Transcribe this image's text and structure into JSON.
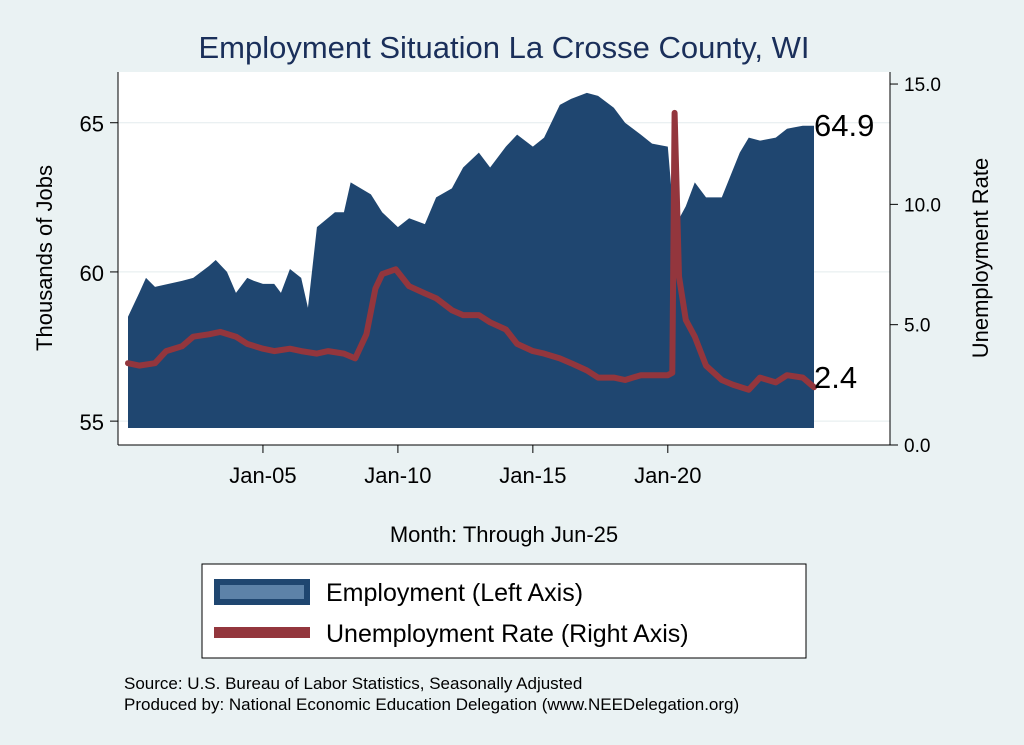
{
  "chart_data": {
    "type": "area",
    "title": "Employment Situation La Crosse  County, WI",
    "xlabel": "Month: Through Jun-25",
    "ylabel_left": "Thousands of Jobs",
    "ylabel_right": "Unemployment Rate",
    "x_ticks": [
      "Jan-05",
      "Jan-10",
      "Jan-15",
      "Jan-20"
    ],
    "y_left_ticks": [
      "55",
      "60",
      "65"
    ],
    "y_right_ticks": [
      "0.0",
      "5.0",
      "10.0",
      "15.0"
    ],
    "y_left_range": [
      54.2,
      66.7
    ],
    "y_right_range": [
      0,
      15.5
    ],
    "x_range": [
      "2000-01",
      "2025-06"
    ],
    "grid": true,
    "legend_position": "bottom",
    "end_labels": {
      "employment": "64.9",
      "unemployment": "2.4"
    },
    "colors": {
      "employment": "#1f4670",
      "unemployment": "#93363d",
      "background": "#eaf2f3",
      "plot_bg": "#ffffff",
      "title": "#1a2f5a"
    },
    "series": [
      {
        "name": "Employment (Left Axis)",
        "axis": "left",
        "points": [
          [
            "2000-01",
            58.5
          ],
          [
            "2000-06",
            59.3
          ],
          [
            "2000-09",
            59.8
          ],
          [
            "2001-01",
            59.5
          ],
          [
            "2002-01",
            59.7
          ],
          [
            "2002-06",
            59.8
          ],
          [
            "2003-01",
            60.2
          ],
          [
            "2003-04",
            60.4
          ],
          [
            "2003-09",
            60.0
          ],
          [
            "2004-01",
            59.3
          ],
          [
            "2004-06",
            59.8
          ],
          [
            "2004-09",
            59.7
          ],
          [
            "2005-01",
            59.6
          ],
          [
            "2005-06",
            59.6
          ],
          [
            "2005-09",
            59.3
          ],
          [
            "2006-01",
            60.1
          ],
          [
            "2006-06",
            59.8
          ],
          [
            "2006-09",
            58.8
          ],
          [
            "2007-01",
            61.5
          ],
          [
            "2007-09",
            62.0
          ],
          [
            "2008-01",
            62.0
          ],
          [
            "2008-04",
            63.0
          ],
          [
            "2009-01",
            62.6
          ],
          [
            "2009-06",
            62.0
          ],
          [
            "2010-01",
            61.5
          ],
          [
            "2010-06",
            61.8
          ],
          [
            "2011-01",
            61.6
          ],
          [
            "2011-06",
            62.5
          ],
          [
            "2012-01",
            62.8
          ],
          [
            "2012-06",
            63.5
          ],
          [
            "2013-01",
            64.0
          ],
          [
            "2013-06",
            63.5
          ],
          [
            "2014-01",
            64.2
          ],
          [
            "2014-06",
            64.6
          ],
          [
            "2015-01",
            64.2
          ],
          [
            "2015-06",
            64.5
          ],
          [
            "2016-01",
            65.6
          ],
          [
            "2016-06",
            65.8
          ],
          [
            "2017-01",
            66.0
          ],
          [
            "2017-06",
            65.9
          ],
          [
            "2018-01",
            65.5
          ],
          [
            "2018-06",
            65.0
          ],
          [
            "2019-01",
            64.6
          ],
          [
            "2019-06",
            64.3
          ],
          [
            "2020-01",
            64.2
          ],
          [
            "2020-04",
            61.5
          ],
          [
            "2020-09",
            62.2
          ],
          [
            "2021-01",
            63.0
          ],
          [
            "2021-06",
            62.5
          ],
          [
            "2022-01",
            62.5
          ],
          [
            "2022-09",
            64.0
          ],
          [
            "2023-01",
            64.5
          ],
          [
            "2023-06",
            64.4
          ],
          [
            "2024-01",
            64.5
          ],
          [
            "2024-06",
            64.8
          ],
          [
            "2025-01",
            64.9
          ],
          [
            "2025-06",
            64.9
          ]
        ]
      },
      {
        "name": "Unemployment Rate (Right Axis)",
        "axis": "right",
        "points": [
          [
            "2000-01",
            3.4
          ],
          [
            "2000-06",
            3.3
          ],
          [
            "2001-01",
            3.4
          ],
          [
            "2001-06",
            3.9
          ],
          [
            "2002-01",
            4.1
          ],
          [
            "2002-06",
            4.5
          ],
          [
            "2003-01",
            4.6
          ],
          [
            "2003-06",
            4.7
          ],
          [
            "2004-01",
            4.5
          ],
          [
            "2004-06",
            4.2
          ],
          [
            "2005-01",
            4.0
          ],
          [
            "2005-06",
            3.9
          ],
          [
            "2006-01",
            4.0
          ],
          [
            "2006-06",
            3.9
          ],
          [
            "2007-01",
            3.8
          ],
          [
            "2007-06",
            3.9
          ],
          [
            "2008-01",
            3.8
          ],
          [
            "2008-06",
            3.6
          ],
          [
            "2008-11",
            4.6
          ],
          [
            "2009-03",
            6.5
          ],
          [
            "2009-06",
            7.1
          ],
          [
            "2009-12",
            7.3
          ],
          [
            "2010-06",
            6.6
          ],
          [
            "2011-01",
            6.3
          ],
          [
            "2011-06",
            6.1
          ],
          [
            "2012-01",
            5.6
          ],
          [
            "2012-06",
            5.4
          ],
          [
            "2013-01",
            5.4
          ],
          [
            "2013-06",
            5.1
          ],
          [
            "2014-01",
            4.8
          ],
          [
            "2014-06",
            4.2
          ],
          [
            "2015-01",
            3.9
          ],
          [
            "2015-06",
            3.8
          ],
          [
            "2016-01",
            3.6
          ],
          [
            "2016-06",
            3.4
          ],
          [
            "2017-01",
            3.1
          ],
          [
            "2017-06",
            2.8
          ],
          [
            "2018-01",
            2.8
          ],
          [
            "2018-06",
            2.7
          ],
          [
            "2019-01",
            2.9
          ],
          [
            "2019-06",
            2.9
          ],
          [
            "2020-01",
            2.9
          ],
          [
            "2020-03",
            3.0
          ],
          [
            "2020-04",
            13.8
          ],
          [
            "2020-06",
            7.0
          ],
          [
            "2020-09",
            5.2
          ],
          [
            "2021-01",
            4.5
          ],
          [
            "2021-06",
            3.3
          ],
          [
            "2022-01",
            2.7
          ],
          [
            "2022-06",
            2.5
          ],
          [
            "2023-01",
            2.3
          ],
          [
            "2023-06",
            2.8
          ],
          [
            "2024-01",
            2.6
          ],
          [
            "2024-06",
            2.9
          ],
          [
            "2025-01",
            2.8
          ],
          [
            "2025-06",
            2.4
          ]
        ]
      }
    ]
  },
  "legend": {
    "employment_label": "Employment (Left Axis)",
    "unemployment_label": "Unemployment Rate (Right Axis)"
  },
  "notes": {
    "source": "Source: U.S. Bureau of Labor Statistics, Seasonally Adjusted",
    "produced_by": "Produced by: National Economic Education Delegation (www.NEEDelegation.org)"
  }
}
